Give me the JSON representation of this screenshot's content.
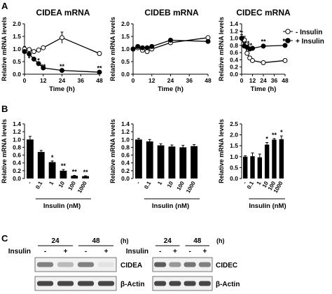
{
  "panels": {
    "A": "A",
    "B": "B",
    "C": "C"
  },
  "common": {
    "ylabel": "Relative mRNA levels",
    "time_xlabel": "Time (h)",
    "insulin_xlabel": "Insulin (nM)"
  },
  "legend": {
    "minus_insulin": "- Insulin",
    "plus_insulin": "+ Insulin"
  },
  "chart_data": [
    {
      "type": "line",
      "title": "CIDEA mRNA",
      "xlabel": "Time (h)",
      "ylabel": "Relative mRNA levels",
      "x": [
        0,
        3,
        6,
        9,
        12,
        24,
        48
      ],
      "xticks": [
        "0",
        "12",
        "24",
        "36",
        "48"
      ],
      "yticks": [
        "0.0",
        "0.5",
        "1.0",
        "1.5",
        "2.0"
      ],
      "xlim": [
        0,
        48
      ],
      "ylim": [
        0,
        2.0
      ],
      "series": [
        {
          "name": "- Insulin",
          "values": [
            1.0,
            0.98,
            0.9,
            0.96,
            1.05,
            1.45,
            0.82
          ],
          "errors": [
            0.1,
            0.05,
            0.05,
            0.05,
            0.05,
            0.22,
            0.03
          ]
        },
        {
          "name": "+ Insulin",
          "values": [
            0.9,
            0.8,
            0.6,
            0.42,
            0.25,
            0.15,
            0.08
          ],
          "errors": [
            0.05,
            0.05,
            0.05,
            0.04,
            0.03,
            0.03,
            0.02
          ]
        }
      ],
      "annotations": [
        {
          "x": 3,
          "y": 0.62,
          "text": "*"
        },
        {
          "x": 6,
          "y": 0.52,
          "text": "*"
        },
        {
          "x": 9,
          "y": 0.54,
          "text": "*"
        },
        {
          "x": 12,
          "y": 0.3,
          "text": "**"
        },
        {
          "x": 24,
          "y": 0.3,
          "text": "**"
        },
        {
          "x": 48,
          "y": 0.23,
          "text": "**"
        }
      ]
    },
    {
      "type": "line",
      "title": "CIDEB mRNA",
      "xlabel": "Time (h)",
      "ylabel": "Relative mRNA levels",
      "x": [
        0,
        3,
        6,
        9,
        12,
        24,
        48
      ],
      "xticks": [
        "0",
        "12",
        "24",
        "36",
        "48"
      ],
      "yticks": [
        "0.0",
        "0.5",
        "1.0",
        "1.5",
        "2.0"
      ],
      "xlim": [
        0,
        48
      ],
      "ylim": [
        0,
        2.0
      ],
      "series": [
        {
          "name": "- Insulin",
          "values": [
            1.0,
            1.05,
            0.95,
            0.9,
            1.0,
            1.25,
            1.45
          ],
          "errors": [
            0.05,
            0.04,
            0.04,
            0.04,
            0.04,
            0.05,
            0.05
          ]
        },
        {
          "name": "+ Insulin",
          "values": [
            1.0,
            1.1,
            1.05,
            1.05,
            1.1,
            1.35,
            1.3
          ],
          "errors": [
            0.05,
            0.04,
            0.04,
            0.04,
            0.04,
            0.05,
            0.05
          ]
        }
      ],
      "annotations": []
    },
    {
      "type": "line",
      "title": "CIDEC mRNA",
      "xlabel": "Time (h)",
      "ylabel": "Relative mRNA levels",
      "x": [
        0,
        3,
        6,
        9,
        12,
        24,
        48
      ],
      "xticks": [
        "0",
        "12",
        "24",
        "36",
        "48"
      ],
      "yticks": [
        "0.0",
        "0.2",
        "0.4",
        "0.6",
        "0.8",
        "1.0",
        "1.2",
        "1.4"
      ],
      "xlim": [
        0,
        48
      ],
      "ylim": [
        0,
        1.4
      ],
      "series": [
        {
          "name": "- Insulin",
          "values": [
            1.0,
            0.95,
            0.58,
            0.45,
            0.38,
            0.32,
            0.38
          ],
          "errors": [
            0.18,
            0.1,
            0.05,
            0.04,
            0.03,
            0.05,
            0.03
          ]
        },
        {
          "name": "+ Insulin",
          "values": [
            1.0,
            0.78,
            0.75,
            0.7,
            0.72,
            0.78,
            0.8
          ],
          "errors": [
            0.1,
            0.05,
            0.04,
            0.04,
            0.04,
            0.03,
            0.03
          ]
        }
      ],
      "annotations": [
        {
          "x": 6,
          "y": 0.86,
          "text": "**"
        },
        {
          "x": 9,
          "y": 0.8,
          "text": "**"
        },
        {
          "x": 12,
          "y": 0.68,
          "text": "**"
        },
        {
          "x": 24,
          "y": 0.9,
          "text": "**"
        },
        {
          "x": 48,
          "y": 0.92,
          "text": "**"
        }
      ]
    },
    {
      "type": "bar",
      "title": "",
      "xlabel": "Insulin (nM)",
      "ylabel": "Relative mRNA levels",
      "categories": [
        "-",
        "0.1",
        "1",
        "10",
        "100",
        "1000"
      ],
      "values": [
        1.0,
        0.68,
        0.42,
        0.2,
        0.07,
        0.06
      ],
      "errors": [
        0.08,
        0.04,
        0.03,
        0.03,
        0.01,
        0.01
      ],
      "annotations": [
        "",
        "",
        "*",
        "**",
        "**",
        "**"
      ],
      "yticks": [
        "0.0",
        "0.2",
        "0.4",
        "0.6",
        "0.8",
        "1.0",
        "1.2",
        "1.4"
      ],
      "ylim": [
        0,
        1.4
      ]
    },
    {
      "type": "bar",
      "title": "",
      "xlabel": "Insulin (nM)",
      "ylabel": "Relative mRNA levels",
      "categories": [
        "-",
        "0.1",
        "1",
        "10",
        "100",
        "1000"
      ],
      "values": [
        1.0,
        0.95,
        0.85,
        0.82,
        0.8,
        0.83
      ],
      "errors": [
        0.03,
        0.05,
        0.04,
        0.04,
        0.05,
        0.04
      ],
      "annotations": [
        "",
        "",
        "",
        "",
        "",
        ""
      ],
      "yticks": [
        "0.0",
        "0.2",
        "0.4",
        "0.6",
        "0.8",
        "1.0",
        "1.2",
        "1.4"
      ],
      "ylim": [
        0,
        1.4
      ]
    },
    {
      "type": "bar",
      "title": "",
      "xlabel": "Insulin (nM)",
      "ylabel": "Relative mRNA levels",
      "categories": [
        "-",
        "0.1",
        "1",
        "10",
        "100",
        "1000"
      ],
      "values": [
        1.0,
        1.02,
        0.97,
        1.55,
        1.78,
        1.8
      ],
      "errors": [
        0.04,
        0.15,
        0.15,
        0.1,
        0.05,
        0.15
      ],
      "annotations": [
        "",
        "",
        "",
        "*",
        "**",
        "*"
      ],
      "yticks": [
        "0.0",
        "0.5",
        "1.0",
        "1.5",
        "2.0",
        "2.5"
      ],
      "ylim": [
        0,
        2.5
      ]
    }
  ],
  "western": {
    "insulin_label": "Insulin",
    "hours_unit": "(h)",
    "timepoints": [
      "24",
      "48"
    ],
    "treatments": [
      "-",
      "+",
      "-",
      "+"
    ],
    "blots": [
      {
        "protein": "CIDEA",
        "intensities": [
          0.55,
          0.3,
          0.55,
          0.12
        ]
      },
      {
        "protein": "β-Actin",
        "intensities": [
          0.8,
          0.8,
          0.8,
          0.8
        ]
      },
      {
        "protein": "CIDEC",
        "intensities": [
          0.7,
          0.45,
          0.6,
          0.55
        ]
      },
      {
        "protein": "β-Actin",
        "intensities": [
          0.8,
          0.8,
          0.8,
          0.8
        ]
      }
    ]
  }
}
